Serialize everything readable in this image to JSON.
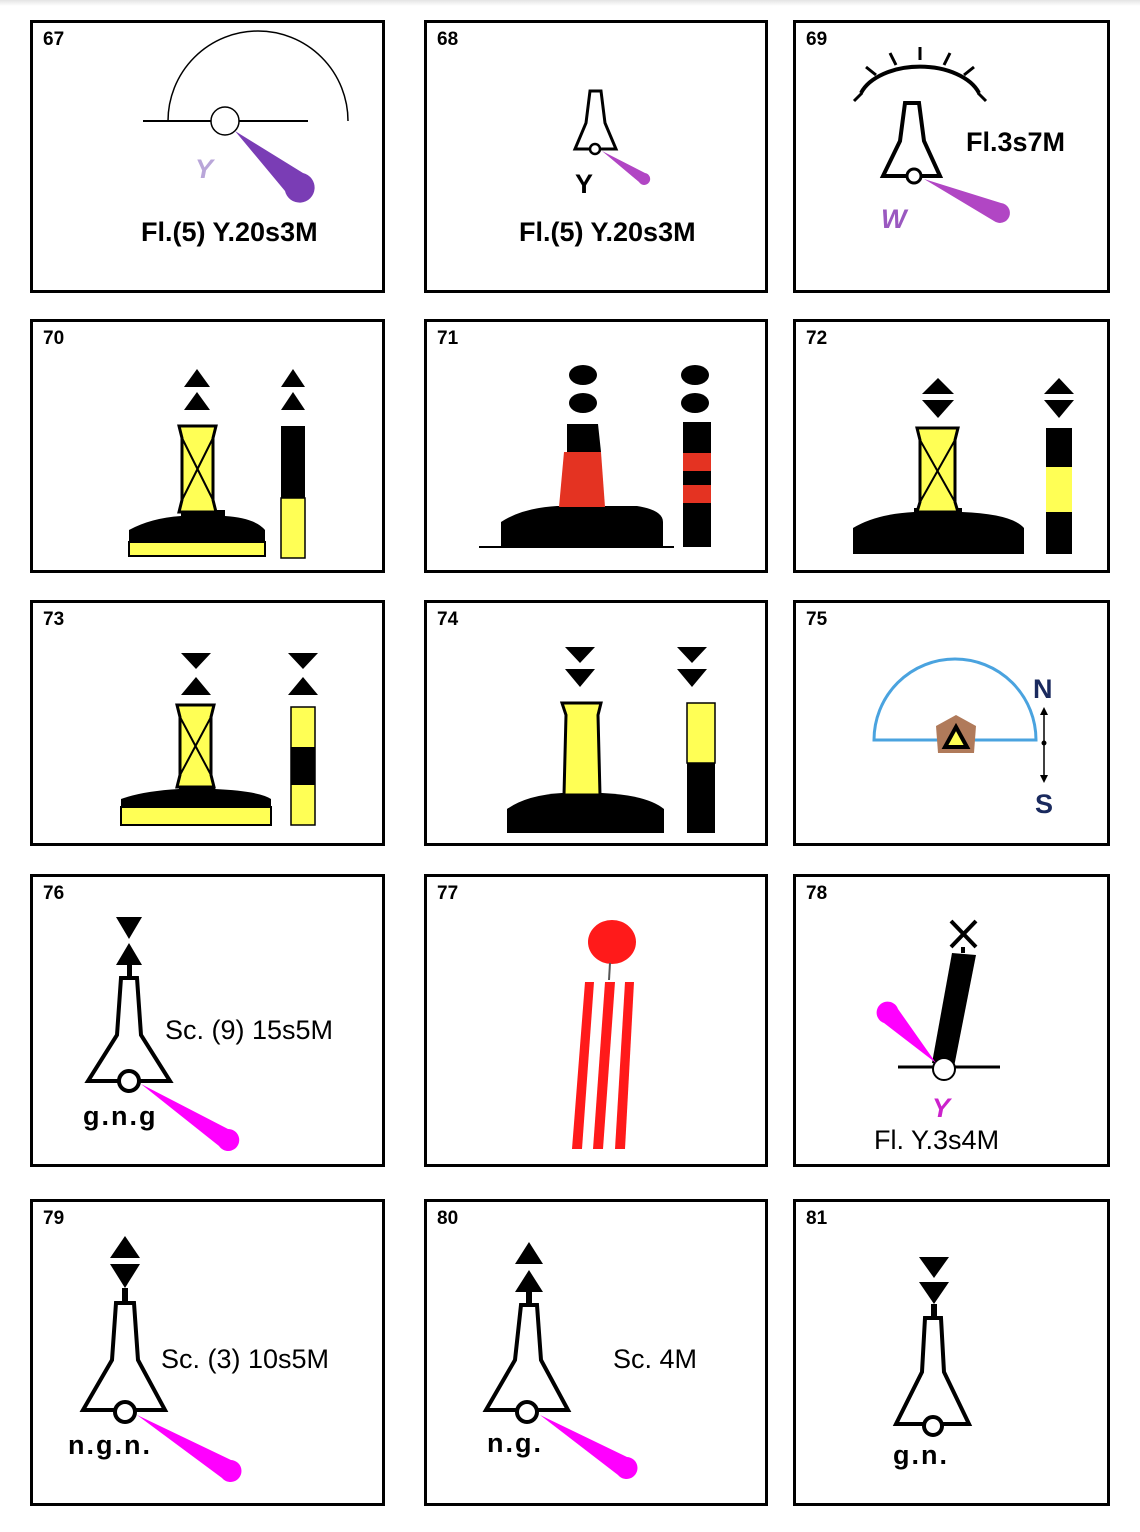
{
  "panels": [
    {
      "id": "67",
      "labels": {
        "color": "Y",
        "text": "Fl.(5) Y.20s3M"
      }
    },
    {
      "id": "68",
      "labels": {
        "color": "Y",
        "text": "Fl.(5) Y.20s3M"
      }
    },
    {
      "id": "69",
      "labels": {
        "text": "Fl.3s7M",
        "color": "W"
      }
    },
    {
      "id": "70"
    },
    {
      "id": "71"
    },
    {
      "id": "72"
    },
    {
      "id": "73"
    },
    {
      "id": "74"
    },
    {
      "id": "75",
      "labels": {
        "north": "N",
        "south": "S"
      }
    },
    {
      "id": "76",
      "labels": {
        "text": "Sc. (9) 15s5M",
        "sub": "g.n.g"
      }
    },
    {
      "id": "77"
    },
    {
      "id": "78",
      "labels": {
        "color": "Y",
        "text": "Fl. Y.3s4M"
      }
    },
    {
      "id": "79",
      "labels": {
        "text": "Sc. (3) 10s5M",
        "sub": "n.g.n."
      }
    },
    {
      "id": "80",
      "labels": {
        "text": "Sc. 4M",
        "sub": "n.g."
      }
    },
    {
      "id": "81",
      "labels": {
        "sub": "g.n."
      }
    }
  ],
  "colors": {
    "yellow": "#ffff55",
    "red": "#e43322",
    "purple": "#7a3db5",
    "magenta": "#ff00ff",
    "violet": "#b146c4",
    "blue": "#4aa3df",
    "brown": "#b07a5a",
    "light_purple": "#b9a6d9"
  }
}
